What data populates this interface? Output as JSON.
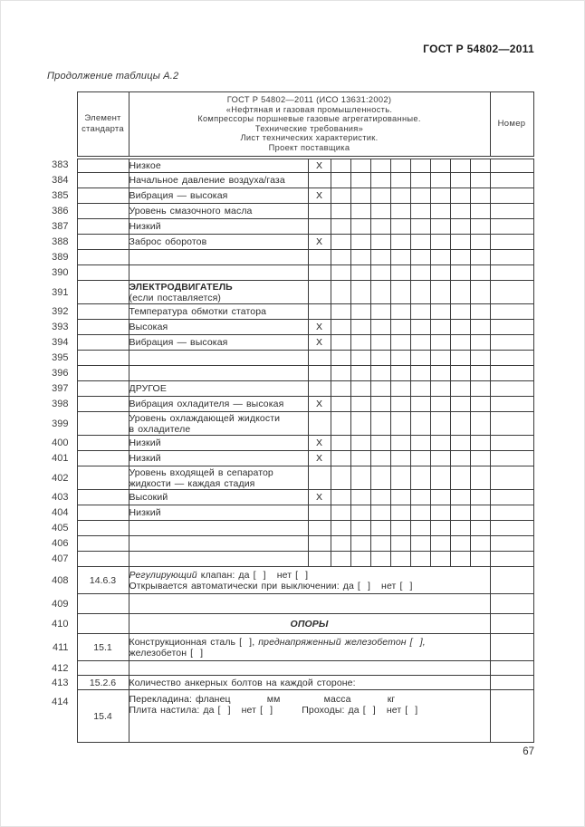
{
  "page": {
    "header_right": "ГОСТ Р 54802—2011",
    "caption": "Продолжение таблицы А.2",
    "page_number": "67"
  },
  "table": {
    "header": {
      "col_element": "Элемент стандарта",
      "col_main_lines": [
        "ГОСТ Р 54802—2011 (ИСО 13631:2002)",
        "«Нефтяная и газовая промышленность.",
        "Компрессоры поршневые газовые агрегатированные.",
        "Технические требования»",
        "Лист технических характеристик.",
        "Проект поставщика"
      ],
      "col_number": "Номер"
    },
    "checkbox_columns": 9,
    "rows": [
      {
        "num": "383",
        "kind": "grid",
        "mark": "X",
        "lines": [
          [
            {
              "t": "Низкое"
            }
          ]
        ]
      },
      {
        "num": "384",
        "kind": "grid",
        "lines": [
          [
            {
              "t": "Начальное давление воздуха/газа"
            }
          ]
        ]
      },
      {
        "num": "385",
        "kind": "grid",
        "mark": "X",
        "lines": [
          [
            {
              "t": "Вибрация — высокая"
            }
          ]
        ]
      },
      {
        "num": "386",
        "kind": "grid",
        "lines": [
          [
            {
              "t": "Уровень смазочного масла"
            }
          ]
        ]
      },
      {
        "num": "387",
        "kind": "grid",
        "lines": [
          [
            {
              "t": "Низкий"
            }
          ]
        ]
      },
      {
        "num": "388",
        "kind": "grid",
        "mark": "X",
        "lines": [
          [
            {
              "t": "Заброс оборотов"
            }
          ]
        ]
      },
      {
        "num": "389",
        "kind": "grid",
        "lines": []
      },
      {
        "num": "390",
        "kind": "grid",
        "lines": []
      },
      {
        "num": "391",
        "kind": "grid",
        "lines": [
          [
            {
              "t": "ЭЛЕКТРОДВИГАТЕЛЬ",
              "b": true
            }
          ],
          [
            {
              "t": "(если поставляется)"
            }
          ]
        ]
      },
      {
        "num": "392",
        "kind": "grid",
        "lines": [
          [
            {
              "t": "Температура обмотки статора"
            }
          ]
        ]
      },
      {
        "num": "393",
        "kind": "grid",
        "mark": "X",
        "lines": [
          [
            {
              "t": "Высокая"
            }
          ]
        ]
      },
      {
        "num": "394",
        "kind": "grid",
        "mark": "X",
        "lines": [
          [
            {
              "t": "Вибрация — высокая"
            }
          ]
        ]
      },
      {
        "num": "395",
        "kind": "grid",
        "lines": []
      },
      {
        "num": "396",
        "kind": "grid",
        "lines": []
      },
      {
        "num": "397",
        "kind": "grid",
        "lines": [
          [
            {
              "t": "ДРУГОЕ"
            }
          ]
        ]
      },
      {
        "num": "398",
        "kind": "grid",
        "mark": "X",
        "lines": [
          [
            {
              "t": "Вибрация охладителя — высокая"
            }
          ]
        ]
      },
      {
        "num": "399",
        "kind": "grid",
        "lines": [
          [
            {
              "t": "Уровень охлаждающей жидкости"
            }
          ],
          [
            {
              "t": "в охладителе"
            }
          ]
        ]
      },
      {
        "num": "400",
        "kind": "grid",
        "mark": "X",
        "lines": [
          [
            {
              "t": "Низкий"
            }
          ]
        ]
      },
      {
        "num": "401",
        "kind": "grid",
        "mark": "X",
        "lines": [
          [
            {
              "t": "Низкий"
            }
          ]
        ]
      },
      {
        "num": "402",
        "kind": "grid",
        "lines": [
          [
            {
              "t": "Уровень входящей в сепаратор"
            }
          ],
          [
            {
              "t": "жидкости — каждая стадия"
            }
          ]
        ]
      },
      {
        "num": "403",
        "kind": "grid",
        "mark": "X",
        "lines": [
          [
            {
              "t": "Высокий"
            }
          ]
        ]
      },
      {
        "num": "404",
        "kind": "grid",
        "lines": [
          [
            {
              "t": "Низкий"
            }
          ]
        ]
      },
      {
        "num": "405",
        "kind": "grid",
        "lines": []
      },
      {
        "num": "406",
        "kind": "grid",
        "lines": []
      },
      {
        "num": "407",
        "kind": "grid",
        "lines": []
      },
      {
        "num": "408",
        "kind": "span",
        "el": "14.6.3",
        "lines": [
          [
            {
              "t": "Регулирующий",
              "i": true
            },
            {
              "t": " клапан: да [  ]   нет [  ]"
            }
          ],
          [
            {
              "t": "Открывается автоматически при выключении: да [  ]   нет [  ]"
            }
          ]
        ]
      },
      {
        "num": "409",
        "kind": "span",
        "lines": []
      },
      {
        "num": "410",
        "kind": "span",
        "center": true,
        "lines": [
          [
            {
              "t": "ОПОРЫ",
              "b": true,
              "i": true
            }
          ]
        ]
      },
      {
        "num": "411",
        "kind": "span",
        "el": "15.1",
        "lines": [
          [
            {
              "t": "Конструкционная сталь [  ], "
            },
            {
              "t": "преднапряженный железобетон [  ],",
              "i": true
            }
          ],
          [
            {
              "t": "железобетон [  ]"
            }
          ]
        ]
      },
      {
        "num": "412",
        "kind": "span",
        "lines": []
      },
      {
        "num": "413",
        "kind": "span",
        "el": "15.2.6",
        "lines": [
          [
            {
              "t": "Количество анкерных болтов на каждой стороне:"
            }
          ]
        ]
      },
      {
        "num": "414",
        "kind": "span",
        "el": "15.4",
        "top": true,
        "lines": [
          [
            {
              "t": "Перекладина: фланец          мм            масса          кг"
            }
          ],
          [
            {
              "t": "Плита настила: да [  ]   нет [  ]        Проходы: да [  ]   нет [  ]"
            }
          ]
        ]
      }
    ]
  }
}
